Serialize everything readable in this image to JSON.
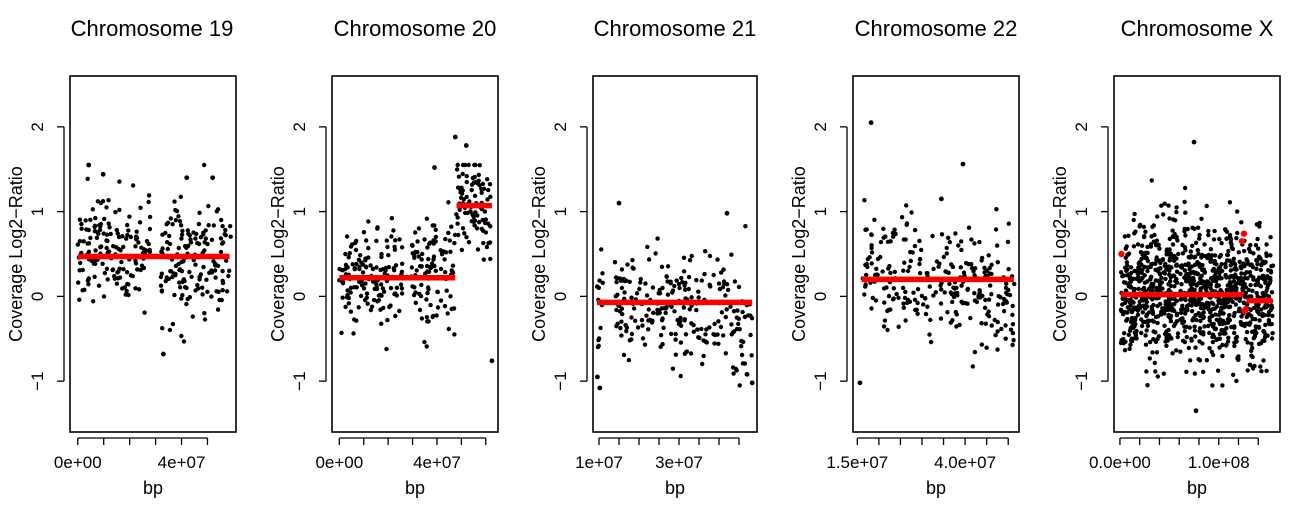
{
  "chart_data": [
    {
      "type": "scatter",
      "title": "Chromosome 19",
      "xlabel": "bp",
      "ylabel": "Coverage Log2−Ratio",
      "ylim": [
        -1.6,
        2.6
      ],
      "yticks": [
        -1,
        0,
        1,
        2
      ],
      "xlim": [
        -3000000,
        61000000
      ],
      "xticks": [
        0,
        10000000,
        20000000,
        30000000,
        40000000,
        50000000
      ],
      "xtick_labels": [
        {
          "value": 0,
          "text": "0e+00"
        },
        {
          "value": 40000000,
          "text": "4e+07"
        }
      ],
      "point_count": 340,
      "gap": [
        28000000,
        32000000
      ],
      "points_seed": 19,
      "scatter_profile": [
        [
          0,
          0.62,
          0.3
        ],
        [
          28000000,
          0.55,
          0.3
        ],
        [
          32000000,
          0.38,
          0.38
        ],
        [
          59000000,
          0.45,
          0.35
        ]
      ],
      "highlight_points": [
        {
          "x": 4200000,
          "y": 1.55
        },
        {
          "x": 9800000,
          "y": 1.44
        },
        {
          "x": 33000000,
          "y": -0.68
        },
        {
          "x": 42000000,
          "y": 1.4
        },
        {
          "x": 52000000,
          "y": 1.4
        }
      ],
      "segments": [
        {
          "x0": 0,
          "x1": 58500000,
          "y": 0.47
        }
      ],
      "red_points": []
    },
    {
      "type": "scatter",
      "title": "Chromosome 20",
      "xlabel": "bp",
      "ylabel": "Coverage Log2−Ratio",
      "ylim": [
        -1.6,
        2.6
      ],
      "yticks": [
        -1,
        0,
        1,
        2
      ],
      "xlim": [
        -3000000,
        65000000
      ],
      "xticks": [
        0,
        10000000,
        20000000,
        30000000,
        40000000,
        50000000,
        60000000
      ],
      "xtick_labels": [
        {
          "value": 0,
          "text": "0e+00"
        },
        {
          "value": 40000000,
          "text": "4e+07"
        }
      ],
      "point_count": 360,
      "gap": [
        26000000,
        29500000
      ],
      "points_seed": 20,
      "scatter_profile": [
        [
          0,
          0.18,
          0.3
        ],
        [
          26000000,
          0.25,
          0.32
        ],
        [
          29500000,
          0.28,
          0.34
        ],
        [
          47000000,
          0.3,
          0.36
        ],
        [
          48000000,
          1.1,
          0.25
        ],
        [
          62000000,
          1.0,
          0.3
        ]
      ],
      "highlight_points": [
        {
          "x": 47500000,
          "y": 1.88
        },
        {
          "x": 52000000,
          "y": 1.78
        },
        {
          "x": 62500000,
          "y": -0.76
        },
        {
          "x": 39000000,
          "y": 1.52
        }
      ],
      "segments": [
        {
          "x0": 0,
          "x1": 47500000,
          "y": 0.22
        },
        {
          "x0": 48000000,
          "y0": 1.07,
          "x1": 62500000,
          "y": 1.07
        }
      ],
      "red_points": []
    },
    {
      "type": "scatter",
      "title": "Chromosome 21",
      "xlabel": "bp",
      "ylabel": "Coverage Log2−Ratio",
      "ylim": [
        -1.6,
        2.6
      ],
      "yticks": [
        -1,
        0,
        1,
        2
      ],
      "xlim": [
        8500000,
        49500000
      ],
      "xticks": [
        10000000,
        15000000,
        20000000,
        25000000,
        30000000,
        35000000,
        40000000,
        45000000
      ],
      "xtick_labels": [
        {
          "value": 10000000,
          "text": "1e+07"
        },
        {
          "value": 30000000,
          "text": "3e+07"
        }
      ],
      "point_count": 280,
      "gap": [
        11000000,
        14000000
      ],
      "points_seed": 21,
      "scatter_profile": [
        [
          9500000,
          -0.05,
          0.3
        ],
        [
          25000000,
          -0.08,
          0.32
        ],
        [
          48500000,
          -0.2,
          0.34
        ]
      ],
      "highlight_points": [
        {
          "x": 9600000,
          "y": -0.95
        },
        {
          "x": 10200000,
          "y": -1.08
        },
        {
          "x": 15000000,
          "y": 1.1
        },
        {
          "x": 47000000,
          "y": -0.92
        },
        {
          "x": 48300000,
          "y": -1.02
        },
        {
          "x": 42000000,
          "y": 0.98
        }
      ],
      "segments": [
        {
          "x0": 9500000,
          "x1": 48300000,
          "y": -0.07
        }
      ],
      "red_points": []
    },
    {
      "type": "scatter",
      "title": "Chromosome 22",
      "xlabel": "bp",
      "ylabel": "Coverage Log2−Ratio",
      "ylim": [
        -1.6,
        2.6
      ],
      "yticks": [
        -1,
        0,
        1,
        2
      ],
      "xlim": [
        14000000,
        52500000
      ],
      "xticks": [
        15000000,
        20000000,
        25000000,
        30000000,
        35000000,
        40000000,
        45000000,
        50000000
      ],
      "xtick_labels": [
        {
          "value": 15000000,
          "text": "1.5e+07"
        },
        {
          "value": 40000000,
          "text": "4.0e+07"
        }
      ],
      "point_count": 270,
      "gap": [
        13000000,
        16000000
      ],
      "points_seed": 22,
      "scatter_profile": [
        [
          16000000,
          0.25,
          0.38
        ],
        [
          33000000,
          0.2,
          0.32
        ],
        [
          51500000,
          0.0,
          0.36
        ]
      ],
      "highlight_points": [
        {
          "x": 15600000,
          "y": -1.02
        },
        {
          "x": 18200000,
          "y": 2.05
        },
        {
          "x": 39500000,
          "y": 1.56
        },
        {
          "x": 34500000,
          "y": 1.15
        }
      ],
      "segments": [
        {
          "x0": 16000000,
          "x1": 51300000,
          "y": 0.2
        }
      ],
      "red_points": []
    },
    {
      "type": "scatter",
      "title": "Chromosome X",
      "xlabel": "bp",
      "ylabel": "Coverage Log2−Ratio",
      "ylim": [
        -1.6,
        2.6
      ],
      "yticks": [
        -1,
        0,
        1,
        2
      ],
      "xlim": [
        -6000000,
        162000000
      ],
      "xticks": [
        0,
        20000000,
        40000000,
        60000000,
        80000000,
        100000000,
        120000000,
        140000000
      ],
      "xtick_labels": [
        {
          "value": 0,
          "text": "0.0e+00"
        },
        {
          "value": 100000000,
          "text": "1.0e+08"
        }
      ],
      "point_count": 1100,
      "gap": [
        59000000,
        61000000
      ],
      "points_seed": 23,
      "scatter_profile": [
        [
          1000000,
          0.05,
          0.36
        ],
        [
          60000000,
          0.1,
          0.38
        ],
        [
          155000000,
          -0.05,
          0.36
        ]
      ],
      "highlight_points": [
        {
          "x": 75000000,
          "y": 1.82
        },
        {
          "x": 77000000,
          "y": -1.35
        }
      ],
      "segments": [
        {
          "x0": 1000000,
          "x1": 125000000,
          "y": 0.02
        },
        {
          "x0": 128000000,
          "x1": 154500000,
          "y": -0.05
        }
      ],
      "red_points": [
        {
          "x": 1500000,
          "y": 0.5
        },
        {
          "x": 123500000,
          "y": 0.65
        },
        {
          "x": 125500000,
          "y": 0.74
        },
        {
          "x": 126000000,
          "y": -0.17
        },
        {
          "x": 127500000,
          "y": -0.15
        }
      ]
    }
  ]
}
